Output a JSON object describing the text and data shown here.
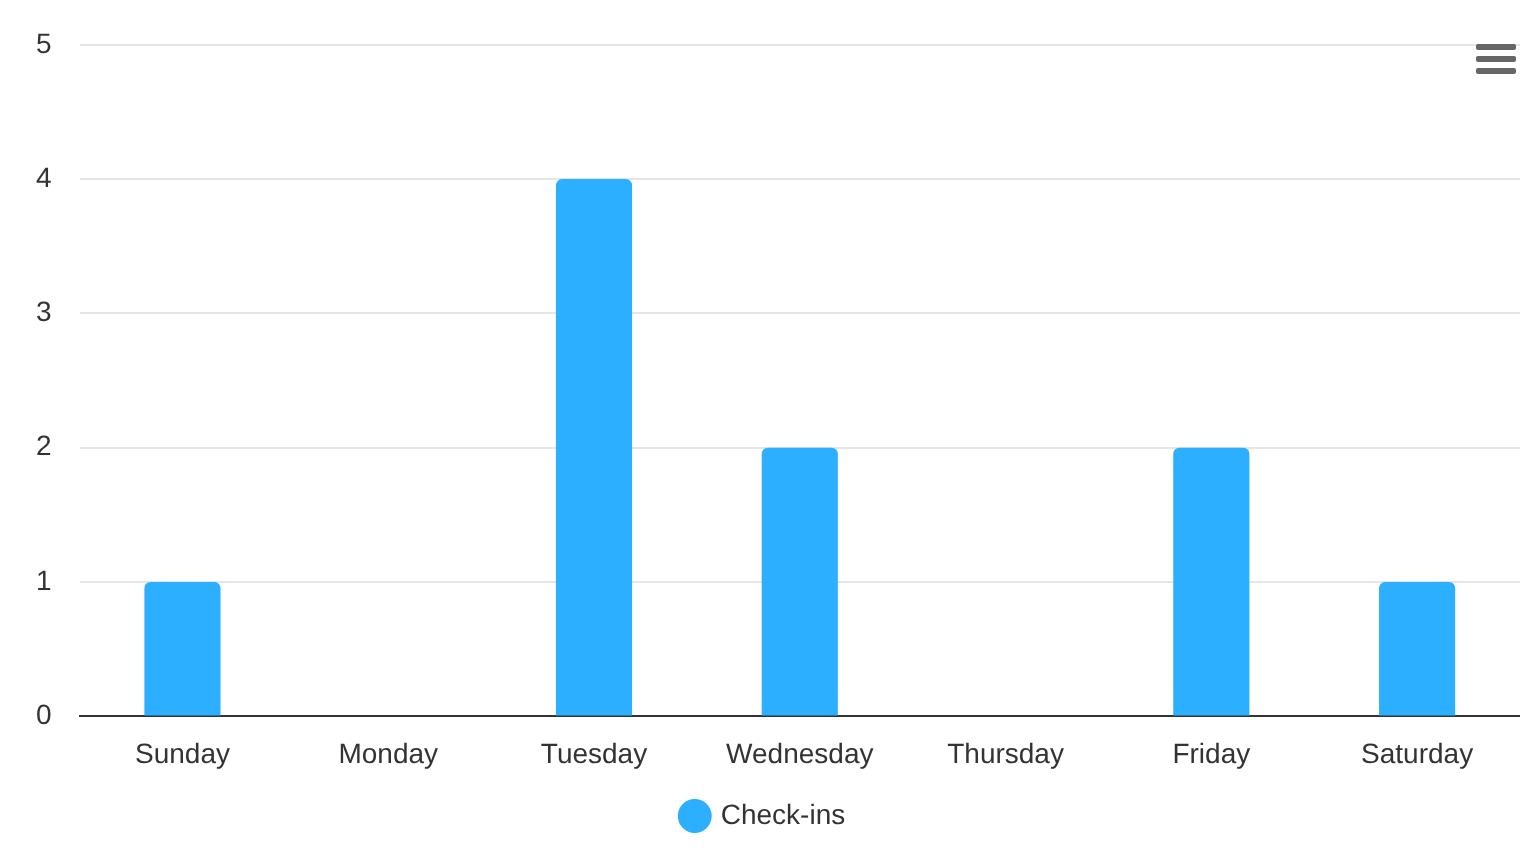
{
  "chart_data": {
    "type": "bar",
    "categories": [
      "Sunday",
      "Monday",
      "Tuesday",
      "Wednesday",
      "Thursday",
      "Friday",
      "Saturday"
    ],
    "series": [
      {
        "name": "Check-ins",
        "color": "#2caffe",
        "values": [
          1,
          0,
          4,
          2,
          0,
          2,
          1
        ]
      }
    ],
    "ylim": [
      0,
      5
    ],
    "yticks": [
      0,
      1,
      2,
      3,
      4,
      5
    ],
    "grid": "y",
    "legend": "bottom"
  }
}
